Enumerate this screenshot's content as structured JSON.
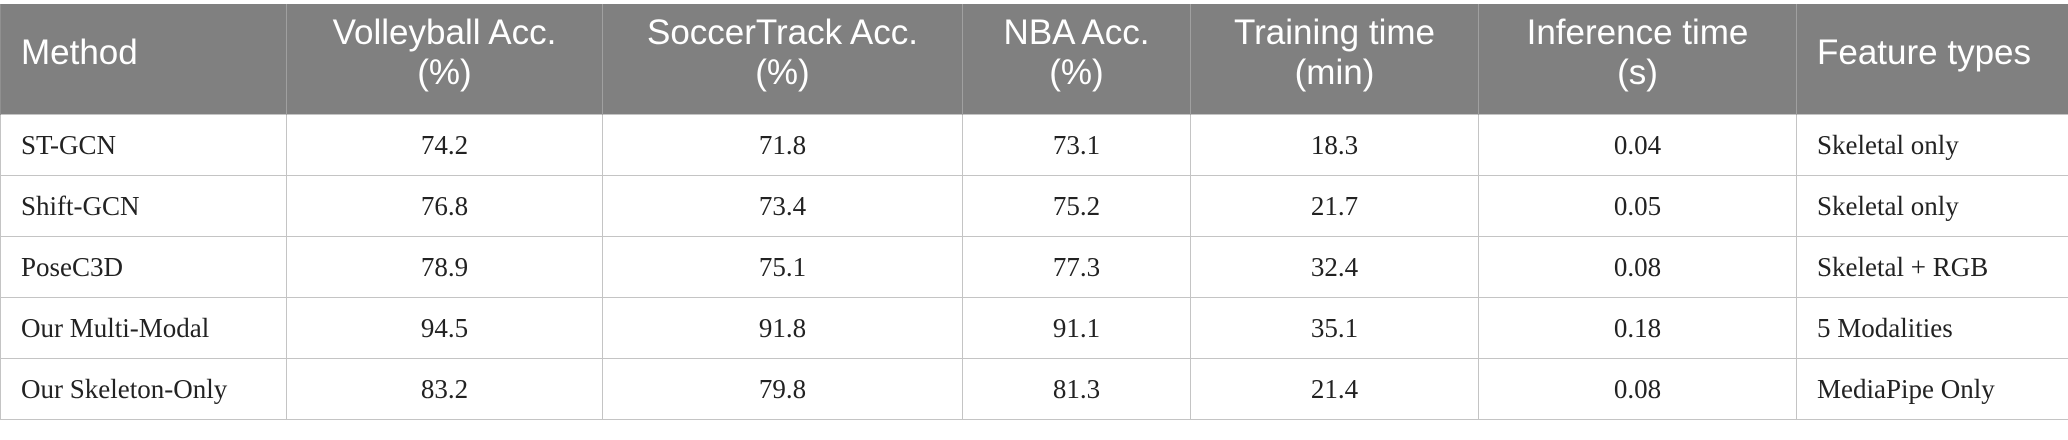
{
  "table": {
    "headers": [
      [
        "Method"
      ],
      [
        "Volleyball Acc.",
        "(%)"
      ],
      [
        "SoccerTrack Acc.",
        "(%)"
      ],
      [
        "NBA Acc.",
        "(%)"
      ],
      [
        "Training time",
        "(min)"
      ],
      [
        "Inference time",
        "(s)"
      ],
      [
        "Feature types"
      ]
    ],
    "rows": [
      [
        "ST-GCN",
        "74.2",
        "71.8",
        "73.1",
        "18.3",
        "0.04",
        "Skeletal only"
      ],
      [
        "Shift-GCN",
        "76.8",
        "73.4",
        "75.2",
        "21.7",
        "0.05",
        "Skeletal only"
      ],
      [
        "PoseC3D",
        "78.9",
        "75.1",
        "77.3",
        "32.4",
        "0.08",
        "Skeletal + RGB"
      ],
      [
        "Our Multi-Modal",
        "94.5",
        "91.8",
        "91.1",
        "35.1",
        "0.18",
        "5 Modalities"
      ],
      [
        "Our Skeleton-Only",
        "83.2",
        "79.8",
        "81.3",
        "21.4",
        "0.08",
        "MediaPipe Only"
      ]
    ]
  }
}
